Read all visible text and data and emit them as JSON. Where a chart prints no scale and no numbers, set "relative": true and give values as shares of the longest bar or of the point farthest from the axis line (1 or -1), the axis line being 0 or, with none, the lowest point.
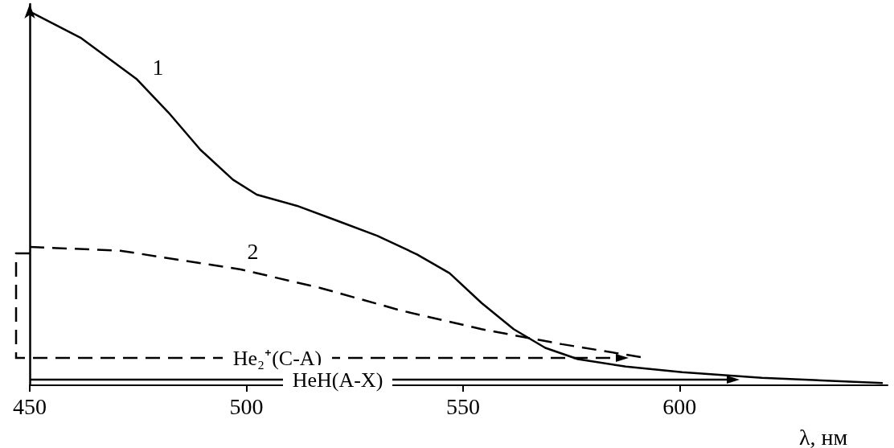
{
  "chart_data": {
    "type": "line",
    "relative": true,
    "xlabel": "λ, нм",
    "xlim": [
      450,
      648
    ],
    "xticks": [
      450,
      500,
      550,
      600
    ],
    "grid": false,
    "legend": false,
    "marker": "none",
    "series": [
      {
        "name": "1",
        "color": "#000000",
        "line_style": "solid",
        "x": [
          450,
          461.7,
          474.6,
          482,
          489.4,
          496.9,
          502.4,
          511.7,
          521,
          530.2,
          539.4,
          546.9,
          554.3,
          561.7,
          569,
          576.5,
          587.6,
          600.6,
          619,
          646.9
        ],
        "values": [
          1.0,
          0.93,
          0.82,
          0.73,
          0.63,
          0.55,
          0.51,
          0.48,
          0.44,
          0.4,
          0.35,
          0.3,
          0.22,
          0.15,
          0.1,
          0.07,
          0.05,
          0.035,
          0.02,
          0.006
        ]
      },
      {
        "name": "2",
        "color": "#000000",
        "line_style": "dashed",
        "x": [
          450,
          470.9,
          498.7,
          517.2,
          535.7,
          554.3,
          572.8,
          591.3
        ],
        "values": [
          0.37,
          0.36,
          0.31,
          0.26,
          0.2,
          0.15,
          0.11,
          0.075
        ]
      }
    ],
    "annotations": [
      "He₂⁺(C-A)",
      "HeH(A-X)"
    ]
  }
}
